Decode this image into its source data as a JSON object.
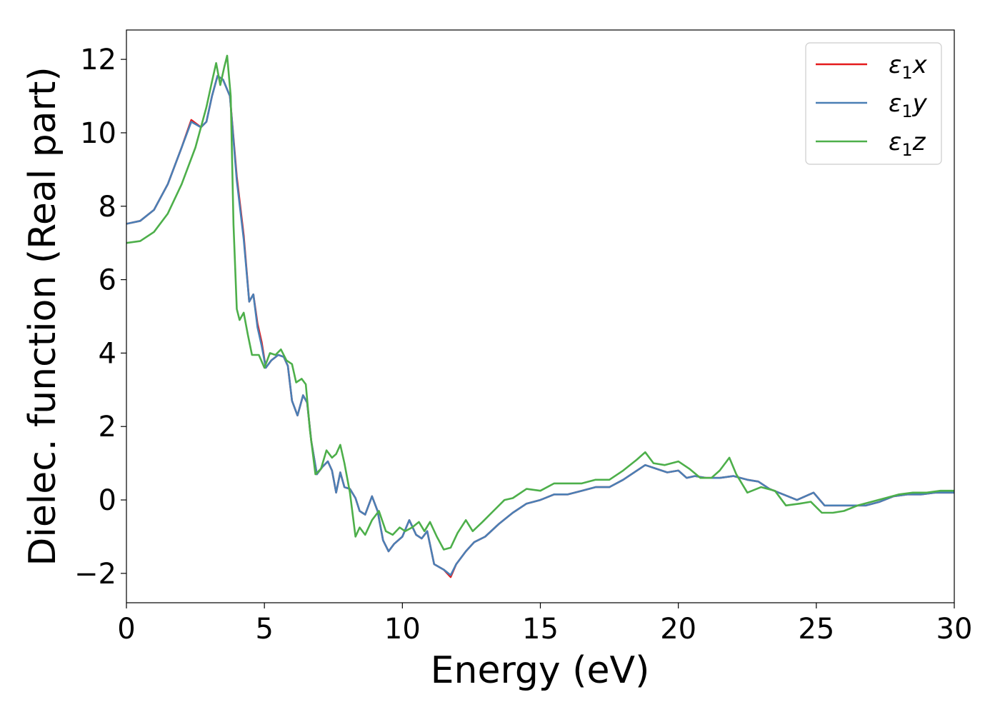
{
  "chart_data": {
    "type": "line",
    "title": "",
    "xlabel": "Energy (eV)",
    "ylabel": "Dielec. function (Real part)",
    "xlim": [
      0,
      30
    ],
    "ylim": [
      -2.8,
      12.8
    ],
    "xticks": [
      0,
      5,
      10,
      15,
      20,
      25,
      30
    ],
    "xtick_labels": [
      "0",
      "5",
      "10",
      "15",
      "20",
      "25",
      "30"
    ],
    "yticks": [
      -2,
      0,
      2,
      4,
      6,
      8,
      10,
      12
    ],
    "ytick_labels": [
      "−2",
      "0",
      "2",
      "4",
      "6",
      "8",
      "10",
      "12"
    ],
    "grid": false,
    "legend_position": "top-right",
    "series": [
      {
        "name": "ε1x",
        "legend_main": "ε",
        "legend_sub": "1",
        "legend_var": "x",
        "color": "#e41a1c",
        "points": [
          [
            0,
            7.52
          ],
          [
            0.5,
            7.6
          ],
          [
            1.0,
            7.9
          ],
          [
            1.5,
            8.6
          ],
          [
            2.0,
            9.6
          ],
          [
            2.35,
            10.35
          ],
          [
            2.7,
            10.15
          ],
          [
            2.9,
            10.3
          ],
          [
            3.1,
            11.0
          ],
          [
            3.3,
            11.55
          ],
          [
            3.5,
            11.45
          ],
          [
            3.75,
            11.0
          ],
          [
            4.0,
            8.8
          ],
          [
            4.25,
            7.2
          ],
          [
            4.45,
            5.4
          ],
          [
            4.6,
            5.6
          ],
          [
            4.75,
            4.8
          ],
          [
            4.9,
            4.3
          ],
          [
            5.05,
            3.6
          ],
          [
            5.25,
            3.8
          ],
          [
            5.5,
            3.95
          ],
          [
            5.7,
            3.9
          ],
          [
            5.85,
            3.65
          ],
          [
            6.0,
            2.7
          ],
          [
            6.2,
            2.3
          ],
          [
            6.4,
            2.85
          ],
          [
            6.55,
            2.65
          ],
          [
            6.7,
            1.6
          ],
          [
            6.9,
            0.7
          ],
          [
            7.1,
            0.9
          ],
          [
            7.3,
            1.05
          ],
          [
            7.45,
            0.8
          ],
          [
            7.6,
            0.2
          ],
          [
            7.75,
            0.75
          ],
          [
            7.9,
            0.35
          ],
          [
            8.1,
            0.3
          ],
          [
            8.3,
            0.05
          ],
          [
            8.45,
            -0.3
          ],
          [
            8.65,
            -0.4
          ],
          [
            8.9,
            0.1
          ],
          [
            9.1,
            -0.3
          ],
          [
            9.3,
            -1.1
          ],
          [
            9.5,
            -1.4
          ],
          [
            9.7,
            -1.2
          ],
          [
            10.0,
            -1.0
          ],
          [
            10.25,
            -0.55
          ],
          [
            10.5,
            -0.95
          ],
          [
            10.7,
            -1.05
          ],
          [
            10.9,
            -0.85
          ],
          [
            11.15,
            -1.75
          ],
          [
            11.5,
            -1.9
          ],
          [
            11.75,
            -2.1
          ],
          [
            11.95,
            -1.75
          ],
          [
            12.3,
            -1.4
          ],
          [
            12.6,
            -1.15
          ],
          [
            13.0,
            -1.0
          ],
          [
            13.5,
            -0.65
          ],
          [
            14.0,
            -0.35
          ],
          [
            14.5,
            -0.1
          ],
          [
            15.0,
            0.0
          ],
          [
            15.5,
            0.15
          ],
          [
            16.0,
            0.15
          ],
          [
            16.5,
            0.25
          ],
          [
            17.0,
            0.35
          ],
          [
            17.5,
            0.35
          ],
          [
            18.0,
            0.55
          ],
          [
            18.5,
            0.8
          ],
          [
            18.8,
            0.95
          ],
          [
            19.2,
            0.85
          ],
          [
            19.6,
            0.75
          ],
          [
            20.0,
            0.8
          ],
          [
            20.3,
            0.6
          ],
          [
            20.6,
            0.65
          ],
          [
            21.0,
            0.6
          ],
          [
            21.5,
            0.6
          ],
          [
            22.0,
            0.65
          ],
          [
            22.5,
            0.55
          ],
          [
            22.9,
            0.5
          ],
          [
            23.3,
            0.3
          ],
          [
            23.8,
            0.15
          ],
          [
            24.3,
            0.0
          ],
          [
            24.9,
            0.2
          ],
          [
            25.3,
            -0.15
          ],
          [
            25.8,
            -0.15
          ],
          [
            26.3,
            -0.15
          ],
          [
            26.8,
            -0.15
          ],
          [
            27.3,
            -0.05
          ],
          [
            27.8,
            0.1
          ],
          [
            28.3,
            0.15
          ],
          [
            28.8,
            0.15
          ],
          [
            29.3,
            0.2
          ],
          [
            29.7,
            0.2
          ],
          [
            30.0,
            0.2
          ]
        ]
      },
      {
        "name": "ε1y",
        "legend_main": "ε",
        "legend_sub": "1",
        "legend_var": "y",
        "color": "#4a7fb5",
        "points": [
          [
            0,
            7.52
          ],
          [
            0.5,
            7.6
          ],
          [
            1.0,
            7.9
          ],
          [
            1.5,
            8.6
          ],
          [
            2.0,
            9.6
          ],
          [
            2.35,
            10.3
          ],
          [
            2.7,
            10.15
          ],
          [
            2.9,
            10.3
          ],
          [
            3.1,
            11.0
          ],
          [
            3.3,
            11.55
          ],
          [
            3.5,
            11.45
          ],
          [
            3.75,
            11.0
          ],
          [
            4.0,
            8.7
          ],
          [
            4.25,
            7.1
          ],
          [
            4.45,
            5.4
          ],
          [
            4.6,
            5.6
          ],
          [
            4.75,
            4.7
          ],
          [
            4.9,
            4.2
          ],
          [
            5.05,
            3.6
          ],
          [
            5.25,
            3.8
          ],
          [
            5.5,
            3.95
          ],
          [
            5.7,
            3.9
          ],
          [
            5.85,
            3.65
          ],
          [
            6.0,
            2.7
          ],
          [
            6.2,
            2.3
          ],
          [
            6.4,
            2.85
          ],
          [
            6.55,
            2.65
          ],
          [
            6.7,
            1.6
          ],
          [
            6.9,
            0.7
          ],
          [
            7.1,
            0.9
          ],
          [
            7.3,
            1.05
          ],
          [
            7.45,
            0.8
          ],
          [
            7.6,
            0.2
          ],
          [
            7.75,
            0.75
          ],
          [
            7.9,
            0.35
          ],
          [
            8.1,
            0.3
          ],
          [
            8.3,
            0.05
          ],
          [
            8.45,
            -0.3
          ],
          [
            8.65,
            -0.4
          ],
          [
            8.9,
            0.1
          ],
          [
            9.1,
            -0.3
          ],
          [
            9.3,
            -1.1
          ],
          [
            9.5,
            -1.4
          ],
          [
            9.7,
            -1.2
          ],
          [
            10.0,
            -1.0
          ],
          [
            10.25,
            -0.55
          ],
          [
            10.5,
            -0.95
          ],
          [
            10.7,
            -1.05
          ],
          [
            10.9,
            -0.85
          ],
          [
            11.15,
            -1.75
          ],
          [
            11.5,
            -1.9
          ],
          [
            11.75,
            -2.05
          ],
          [
            11.95,
            -1.75
          ],
          [
            12.3,
            -1.4
          ],
          [
            12.6,
            -1.15
          ],
          [
            13.0,
            -1.0
          ],
          [
            13.5,
            -0.65
          ],
          [
            14.0,
            -0.35
          ],
          [
            14.5,
            -0.1
          ],
          [
            15.0,
            0.0
          ],
          [
            15.5,
            0.15
          ],
          [
            16.0,
            0.15
          ],
          [
            16.5,
            0.25
          ],
          [
            17.0,
            0.35
          ],
          [
            17.5,
            0.35
          ],
          [
            18.0,
            0.55
          ],
          [
            18.5,
            0.8
          ],
          [
            18.8,
            0.95
          ],
          [
            19.2,
            0.85
          ],
          [
            19.6,
            0.75
          ],
          [
            20.0,
            0.8
          ],
          [
            20.3,
            0.6
          ],
          [
            20.6,
            0.65
          ],
          [
            21.0,
            0.6
          ],
          [
            21.5,
            0.6
          ],
          [
            22.0,
            0.65
          ],
          [
            22.5,
            0.55
          ],
          [
            22.9,
            0.5
          ],
          [
            23.3,
            0.3
          ],
          [
            23.8,
            0.15
          ],
          [
            24.3,
            0.0
          ],
          [
            24.9,
            0.2
          ],
          [
            25.3,
            -0.15
          ],
          [
            25.8,
            -0.15
          ],
          [
            26.3,
            -0.15
          ],
          [
            26.8,
            -0.15
          ],
          [
            27.3,
            -0.05
          ],
          [
            27.8,
            0.1
          ],
          [
            28.3,
            0.15
          ],
          [
            28.8,
            0.15
          ],
          [
            29.3,
            0.2
          ],
          [
            29.7,
            0.2
          ],
          [
            30.0,
            0.2
          ]
        ]
      },
      {
        "name": "ε1z",
        "legend_main": "ε",
        "legend_sub": "1",
        "legend_var": "z",
        "color": "#4daf4a",
        "points": [
          [
            0,
            7.0
          ],
          [
            0.5,
            7.05
          ],
          [
            1.0,
            7.3
          ],
          [
            1.5,
            7.8
          ],
          [
            2.0,
            8.6
          ],
          [
            2.5,
            9.6
          ],
          [
            2.9,
            10.7
          ],
          [
            3.1,
            11.4
          ],
          [
            3.25,
            11.9
          ],
          [
            3.4,
            11.3
          ],
          [
            3.55,
            11.8
          ],
          [
            3.65,
            12.1
          ],
          [
            3.78,
            11.0
          ],
          [
            3.88,
            7.5
          ],
          [
            4.0,
            5.2
          ],
          [
            4.1,
            4.9
          ],
          [
            4.25,
            5.1
          ],
          [
            4.4,
            4.5
          ],
          [
            4.55,
            3.95
          ],
          [
            4.8,
            3.95
          ],
          [
            5.0,
            3.6
          ],
          [
            5.2,
            4.0
          ],
          [
            5.4,
            3.95
          ],
          [
            5.6,
            4.1
          ],
          [
            5.8,
            3.8
          ],
          [
            6.0,
            3.7
          ],
          [
            6.15,
            3.2
          ],
          [
            6.35,
            3.3
          ],
          [
            6.5,
            3.15
          ],
          [
            6.65,
            1.9
          ],
          [
            6.85,
            0.7
          ],
          [
            7.05,
            0.85
          ],
          [
            7.25,
            1.35
          ],
          [
            7.45,
            1.15
          ],
          [
            7.6,
            1.25
          ],
          [
            7.75,
            1.5
          ],
          [
            7.9,
            1.0
          ],
          [
            8.1,
            0.2
          ],
          [
            8.3,
            -1.0
          ],
          [
            8.45,
            -0.75
          ],
          [
            8.65,
            -0.95
          ],
          [
            8.9,
            -0.55
          ],
          [
            9.15,
            -0.3
          ],
          [
            9.4,
            -0.85
          ],
          [
            9.65,
            -0.95
          ],
          [
            9.9,
            -0.75
          ],
          [
            10.1,
            -0.85
          ],
          [
            10.35,
            -0.75
          ],
          [
            10.6,
            -0.6
          ],
          [
            10.8,
            -0.85
          ],
          [
            11.0,
            -0.6
          ],
          [
            11.25,
            -1.0
          ],
          [
            11.5,
            -1.35
          ],
          [
            11.75,
            -1.3
          ],
          [
            12.0,
            -0.9
          ],
          [
            12.3,
            -0.55
          ],
          [
            12.55,
            -0.85
          ],
          [
            12.9,
            -0.6
          ],
          [
            13.3,
            -0.3
          ],
          [
            13.7,
            0.0
          ],
          [
            14.0,
            0.05
          ],
          [
            14.5,
            0.3
          ],
          [
            15.0,
            0.25
          ],
          [
            15.5,
            0.45
          ],
          [
            16.0,
            0.45
          ],
          [
            16.5,
            0.45
          ],
          [
            17.0,
            0.55
          ],
          [
            17.5,
            0.55
          ],
          [
            18.0,
            0.8
          ],
          [
            18.5,
            1.1
          ],
          [
            18.8,
            1.3
          ],
          [
            19.1,
            1.0
          ],
          [
            19.5,
            0.95
          ],
          [
            20.0,
            1.05
          ],
          [
            20.4,
            0.85
          ],
          [
            20.8,
            0.6
          ],
          [
            21.2,
            0.6
          ],
          [
            21.5,
            0.8
          ],
          [
            21.85,
            1.15
          ],
          [
            22.1,
            0.7
          ],
          [
            22.5,
            0.2
          ],
          [
            23.0,
            0.35
          ],
          [
            23.5,
            0.25
          ],
          [
            23.9,
            -0.15
          ],
          [
            24.4,
            -0.1
          ],
          [
            24.8,
            -0.05
          ],
          [
            25.2,
            -0.35
          ],
          [
            25.6,
            -0.35
          ],
          [
            26.0,
            -0.3
          ],
          [
            26.5,
            -0.15
          ],
          [
            27.0,
            -0.05
          ],
          [
            27.5,
            0.05
          ],
          [
            28.0,
            0.15
          ],
          [
            28.5,
            0.2
          ],
          [
            29.0,
            0.2
          ],
          [
            29.5,
            0.25
          ],
          [
            30.0,
            0.25
          ]
        ]
      }
    ]
  }
}
